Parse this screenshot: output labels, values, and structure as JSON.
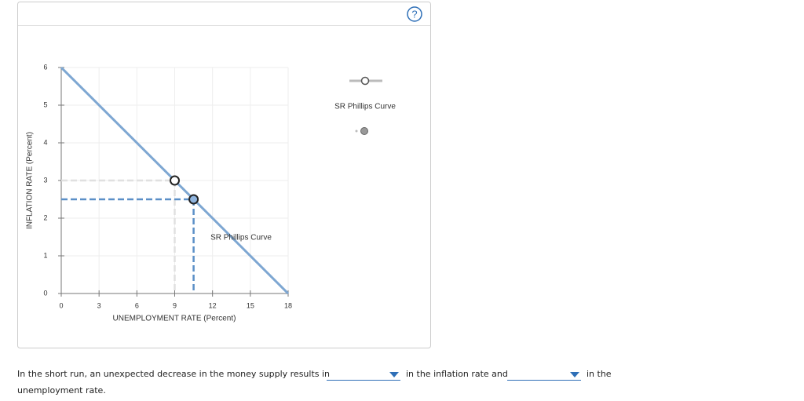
{
  "chart_data": {
    "type": "line",
    "xlabel": "UNEMPLOYMENT RATE (Percent)",
    "ylabel": "INFLATION RATE (Percent)",
    "xlim": [
      0,
      18
    ],
    "xticks": [
      0,
      3,
      6,
      9,
      12,
      15,
      18
    ],
    "ylim": [
      0,
      6
    ],
    "yticks": [
      0,
      1,
      2,
      3,
      4,
      5,
      6
    ],
    "grid": true,
    "series": [
      {
        "name": "SR Phillips Curve",
        "color": "#7ea7d2",
        "x": [
          0,
          18
        ],
        "values": [
          6,
          0
        ]
      }
    ],
    "points": [
      {
        "x": 9,
        "y": 3
      },
      {
        "x": 10.5,
        "y": 2.5
      }
    ],
    "annotation": "SR Phillips Curve"
  },
  "question": {
    "text_before": "In the short run, an unexpected decrease in the money supply results in",
    "text_middle": "in the inflation rate and",
    "text_after": "in the",
    "text_end": "unemployment rate."
  },
  "help_icon": "?"
}
